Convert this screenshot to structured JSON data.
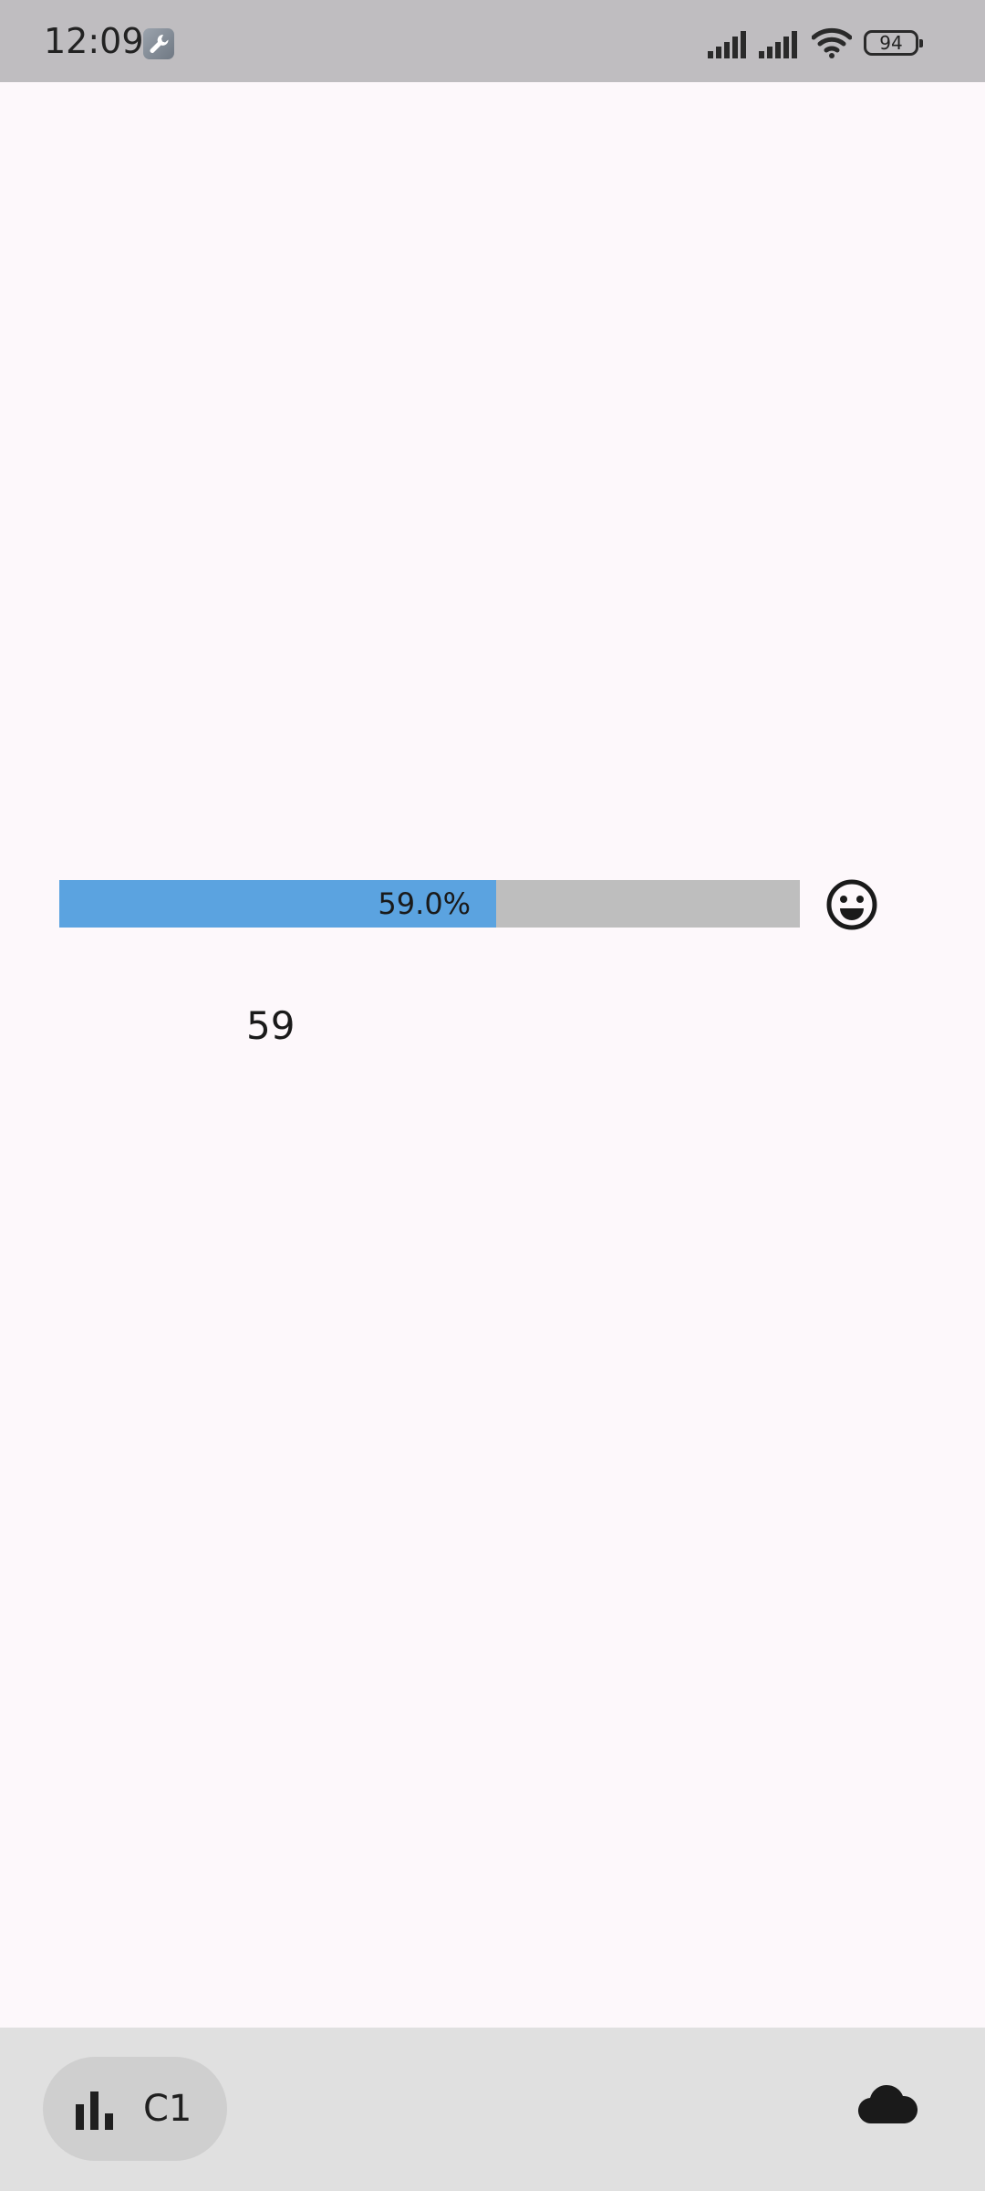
{
  "status_bar": {
    "time": "12:09",
    "battery_level": "94"
  },
  "progress": {
    "value_fraction": 0.59,
    "label": "59.0%",
    "fill_color": "#5ba3e0",
    "track_color": "#bebebe"
  },
  "value_display": "59",
  "bottom_bar": {
    "chip_label": "C1"
  },
  "icons": {
    "status_app": "wrench-icon",
    "signal": "signal-icon",
    "wifi": "wifi-icon",
    "battery": "battery-icon",
    "mood": "smiley-icon",
    "chart": "bar-chart-icon",
    "cloud": "cloud-icon"
  }
}
